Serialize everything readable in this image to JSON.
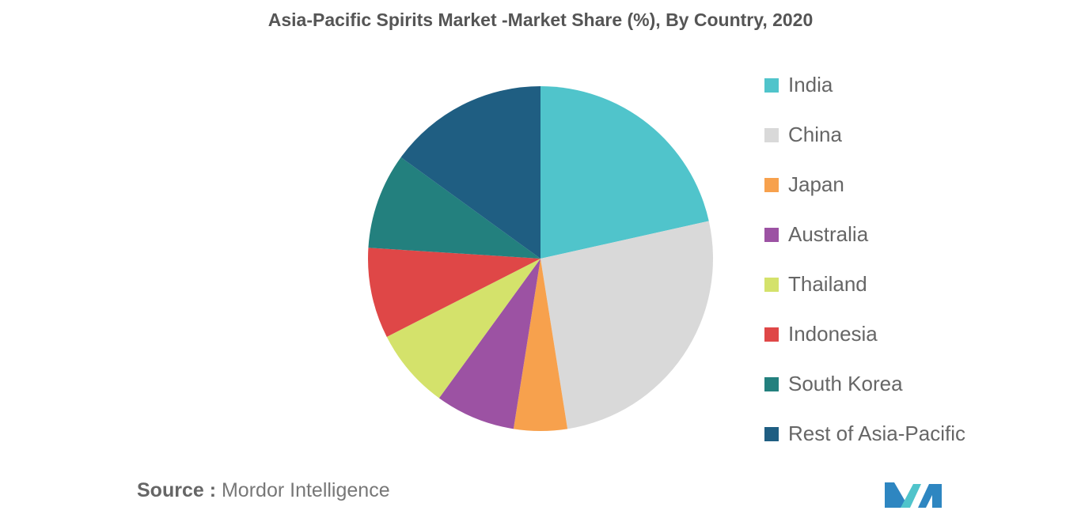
{
  "chart_data": {
    "type": "pie",
    "title": "Asia-Pacific Spirits Market -Market Share (%), By Country, 2020",
    "start_angle_deg": 0,
    "direction": "clockwise",
    "legend_position": "right",
    "slices": [
      {
        "label": "India",
        "value": 21.5,
        "color": "#50c4cb"
      },
      {
        "label": "China",
        "value": 26.0,
        "color": "#d9d9d9"
      },
      {
        "label": "Japan",
        "value": 5.0,
        "color": "#f7a14d"
      },
      {
        "label": "Australia",
        "value": 7.5,
        "color": "#9c52a3"
      },
      {
        "label": "Thailand",
        "value": 7.5,
        "color": "#d4e26b"
      },
      {
        "label": "Indonesia",
        "value": 8.5,
        "color": "#df4747"
      },
      {
        "label": "South Korea",
        "value": 9.0,
        "color": "#23807e"
      },
      {
        "label": "Rest of Asia-Pacific",
        "value": 15.0,
        "color": "#1f5e82"
      }
    ]
  },
  "source": {
    "prefix": "Source :",
    "name": "Mordor Intelligence"
  },
  "logo": {
    "icon": "mordor-intelligence-logo-icon",
    "colors": [
      "#2e86c1",
      "#50c4cb"
    ]
  }
}
